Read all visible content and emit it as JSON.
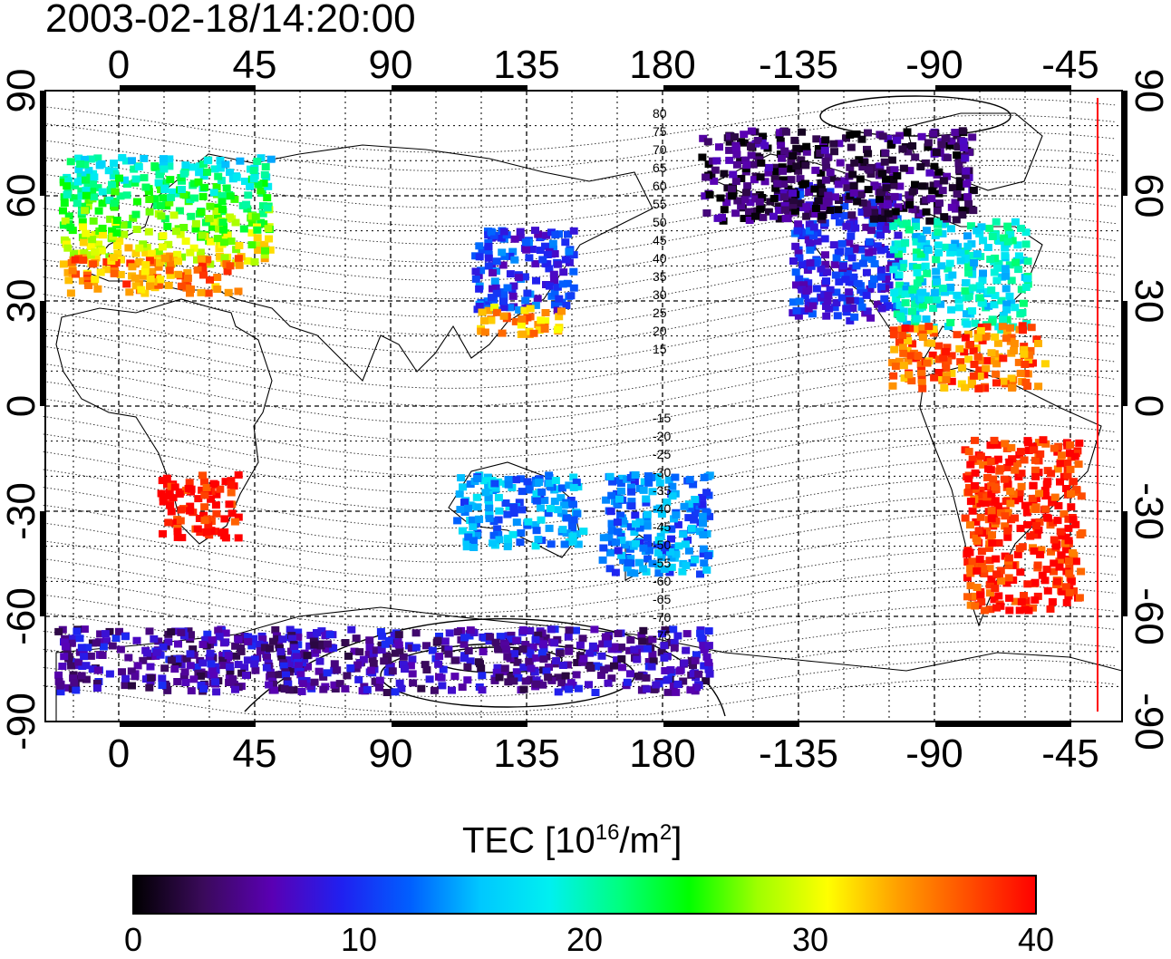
{
  "title": "2003-02-18/14:20:00",
  "top_axis": {
    "ticks": [
      "0",
      "45",
      "90",
      "135",
      "180",
      "-135",
      "-90",
      "-45"
    ]
  },
  "bottom_axis": {
    "ticks": [
      "0",
      "45",
      "90",
      "135",
      "180",
      "-135",
      "-90",
      "-45"
    ]
  },
  "left_axis": {
    "ticks": [
      "90",
      "60",
      "30",
      "0",
      "-30",
      "-60",
      "-90"
    ]
  },
  "right_axis": {
    "ticks": [
      "90",
      "60",
      "30",
      "0",
      "-30",
      "-60",
      "-90"
    ]
  },
  "contour_labels": {
    "north": [
      "80",
      "75",
      "70",
      "65",
      "60",
      "55",
      "50",
      "45",
      "40",
      "35",
      "30",
      "25",
      "20",
      "15"
    ],
    "south": [
      "15",
      "20",
      "25",
      "30",
      "35",
      "40",
      "45",
      "50",
      "55",
      "60",
      "65",
      "70",
      "75"
    ]
  },
  "colorbar": {
    "title_main": "TEC  [10",
    "title_exp1": "16",
    "title_mid": "/m",
    "title_exp2": "2",
    "title_end": "]",
    "tick_labels": [
      "0",
      "10",
      "20",
      "30",
      "40"
    ],
    "min": 0,
    "max": 40,
    "colors": [
      "#000000",
      "#3a0a5a",
      "#5a00b4",
      "#2020f0",
      "#0060ff",
      "#00c8ff",
      "#00f0f0",
      "#00ff80",
      "#00ff00",
      "#a0ff00",
      "#ffff00",
      "#ffa000",
      "#ff5000",
      "#ff0000"
    ]
  },
  "terminator_color": "#ff0000",
  "tec_regions": [
    {
      "name": "europe",
      "value": 22
    },
    {
      "name": "mediterranean",
      "value": 35
    },
    {
      "name": "east-asia",
      "value": 10
    },
    {
      "name": "south-china",
      "value": 34
    },
    {
      "name": "north-america-west",
      "value": 9
    },
    {
      "name": "north-america-east",
      "value": 18
    },
    {
      "name": "gulf-caribbean",
      "value": 36
    },
    {
      "name": "south-america",
      "value": 39
    },
    {
      "name": "africa-south",
      "value": 40
    },
    {
      "name": "australia",
      "value": 14
    },
    {
      "name": "new-zealand",
      "value": 13
    },
    {
      "name": "arctic",
      "value": 3
    },
    {
      "name": "antarctica",
      "value": 6
    }
  ]
}
